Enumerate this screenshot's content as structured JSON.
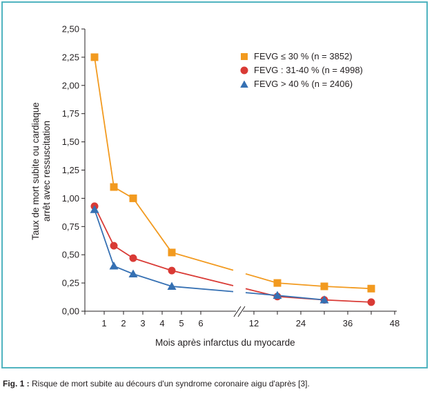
{
  "chart_data": {
    "type": "line",
    "title": "",
    "ylabel_line1": "Taux de mort subite ou cardiaque",
    "ylabel_line2": "arrêt avec ressuscitation",
    "xlabel": "Mois après infarctus du myocarde",
    "ylim": [
      0,
      2.5
    ],
    "y_ticks": [
      "0,00",
      "0,25",
      "0,50",
      "0,75",
      "1,00",
      "1,25",
      "1,50",
      "1,75",
      "2,00",
      "2,25",
      "2,50"
    ],
    "x_ticks": [
      "1",
      "2",
      "3",
      "4",
      "5",
      "6",
      "12",
      "24",
      "36",
      "48"
    ],
    "x_axis_break": "between 6 and 12",
    "grid": false,
    "legend_position": "top-right",
    "series": [
      {
        "name": "FEVG ≤ 30 % (n = 3852)",
        "marker": "square",
        "color": "#f29a1f",
        "x": [
          0.5,
          1.5,
          2.5,
          4.5,
          18,
          30,
          42
        ],
        "y": [
          2.25,
          1.1,
          1.0,
          0.52,
          0.25,
          0.22,
          0.2
        ]
      },
      {
        "name": "FEVG : 31-40 % (n = 4998)",
        "marker": "circle",
        "color": "#d93a35",
        "x": [
          0.5,
          1.5,
          2.5,
          4.5,
          18,
          30,
          42
        ],
        "y": [
          0.93,
          0.58,
          0.47,
          0.36,
          0.13,
          0.1,
          0.08
        ]
      },
      {
        "name": "FEVG > 40 % (n = 2406)",
        "marker": "triangle",
        "color": "#3570b3",
        "x": [
          0.5,
          1.5,
          2.5,
          4.5,
          18,
          30
        ],
        "y": [
          0.9,
          0.4,
          0.33,
          0.22,
          0.14,
          0.1
        ]
      }
    ]
  },
  "caption": {
    "label": "Fig. 1 :",
    "text": " Risque de mort subite au décours d'un syndrome coronaire aigu d'après [3]."
  }
}
